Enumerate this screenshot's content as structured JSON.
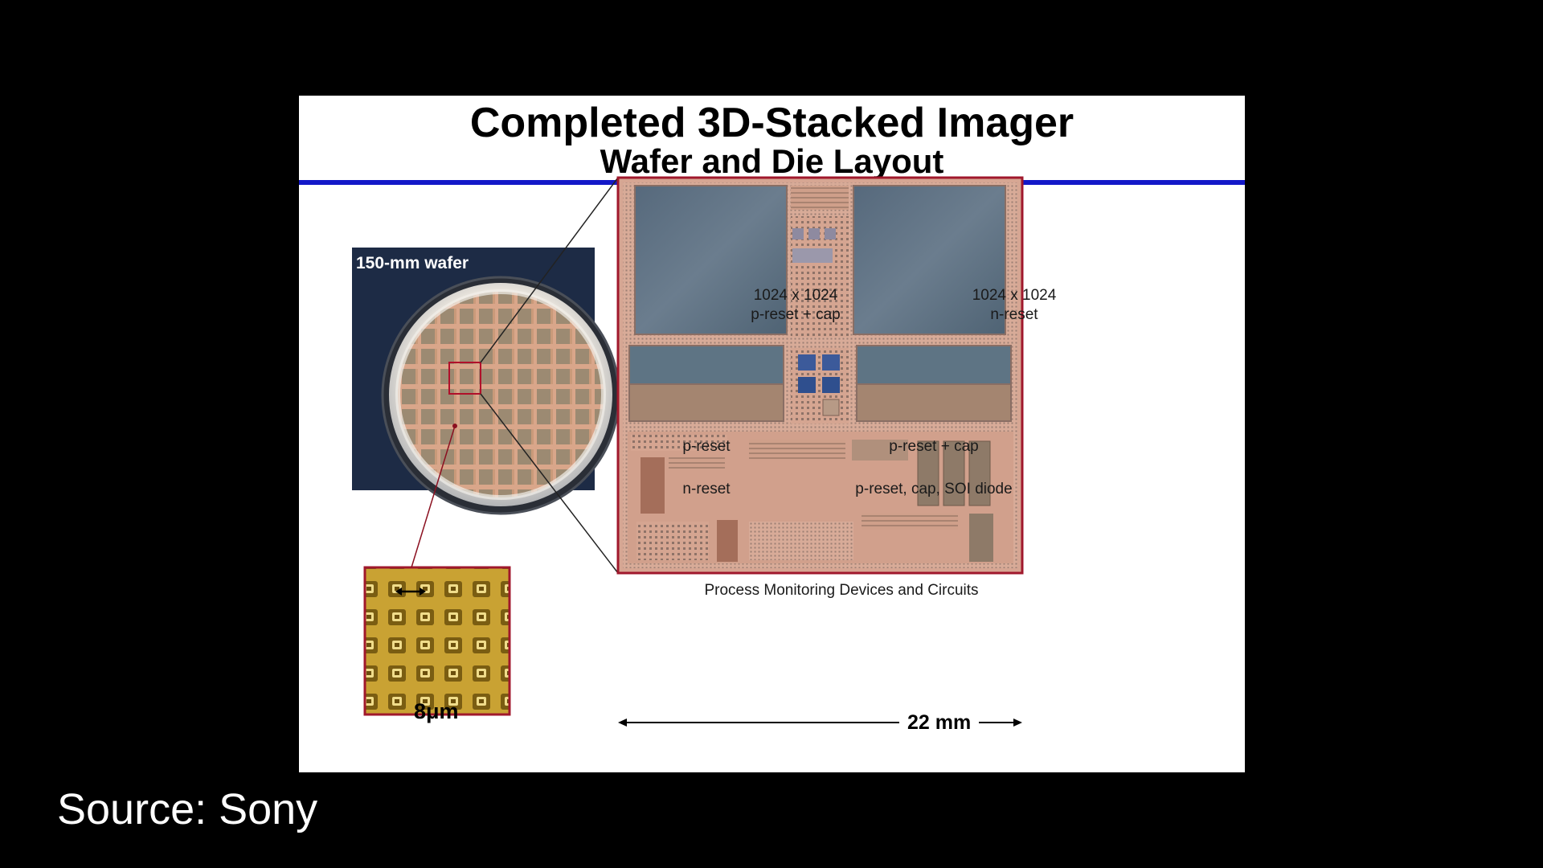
{
  "slide": {
    "title": "Completed 3D-Stacked Imager",
    "subtitle": "Wafer and Die Layout",
    "rule_color": "#1318c8"
  },
  "wafer": {
    "label": "150-mm wafer"
  },
  "pixel_closeup": {
    "pitch_label": "8μm"
  },
  "die": {
    "blocks": [
      {
        "line1": "1024 x 1024",
        "line2": "p-reset + cap"
      },
      {
        "line1": "1024 x 1024",
        "line2": "n-reset"
      },
      {
        "line1": "p-reset",
        "line2": ""
      },
      {
        "line1": "n-reset",
        "line2": ""
      },
      {
        "line1": "p-reset + cap",
        "line2": ""
      },
      {
        "line1": "p-reset, cap, SOI diode",
        "line2": ""
      },
      {
        "line1": "Process Monitoring Devices and Circuits",
        "line2": ""
      }
    ],
    "scale_label": "22 mm"
  },
  "source": "Source: Sony"
}
